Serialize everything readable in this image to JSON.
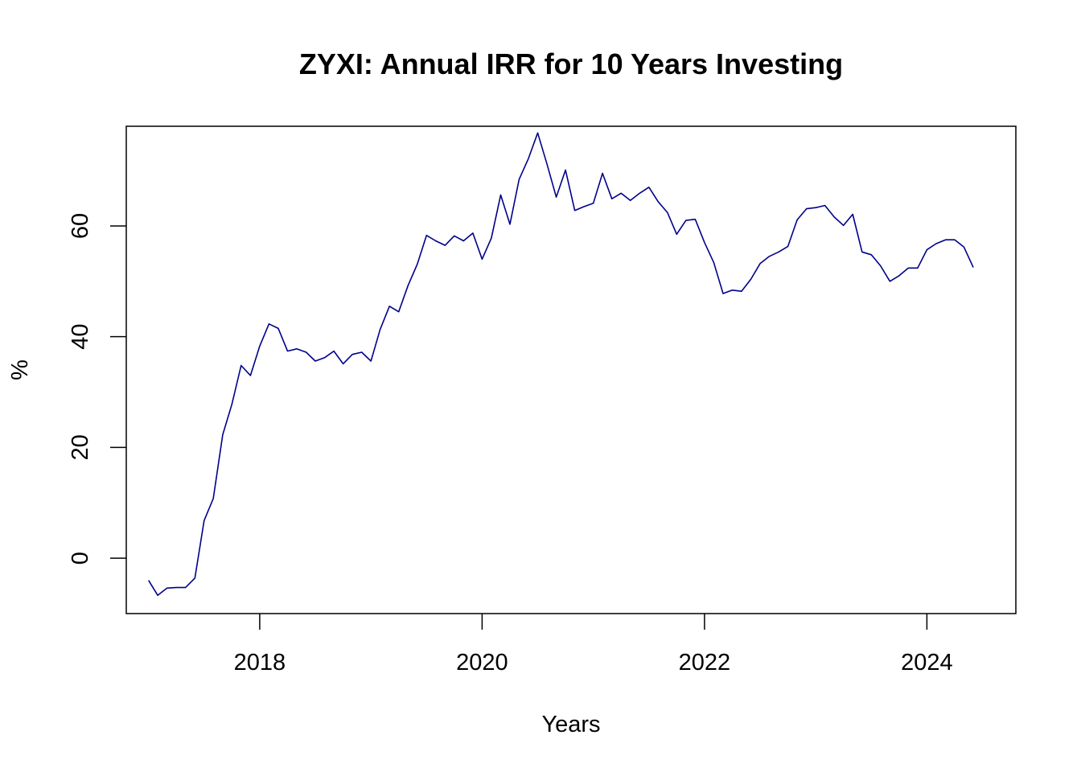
{
  "chart_data": {
    "type": "line",
    "title": "ZYXI: Annual IRR for 10 Years Investing",
    "xlabel": "Years",
    "ylabel": "%",
    "xlim": [
      2016.8,
      2024.8
    ],
    "ylim": [
      -10,
      78
    ],
    "x_ticks": [
      2018,
      2020,
      2022,
      2024
    ],
    "x_tick_labels": [
      "2018",
      "2020",
      "2022",
      "2024"
    ],
    "y_ticks": [
      0,
      20,
      40,
      60
    ],
    "y_tick_labels": [
      "0",
      "20",
      "40",
      "60"
    ],
    "grid": false,
    "legend": "none",
    "line_color": "#00008B",
    "series": [
      {
        "x": [
          2017.0,
          2017.083,
          2017.167,
          2017.25,
          2017.333,
          2017.417,
          2017.5,
          2017.583,
          2017.667,
          2017.75,
          2017.833,
          2017.917,
          2018.0,
          2018.083,
          2018.167,
          2018.25,
          2018.333,
          2018.417,
          2018.5,
          2018.583,
          2018.667,
          2018.75,
          2018.833,
          2018.917,
          2019.0,
          2019.083,
          2019.167,
          2019.25,
          2019.333,
          2019.417,
          2019.5,
          2019.583,
          2019.667,
          2019.75,
          2019.833,
          2019.917,
          2020.0,
          2020.083,
          2020.167,
          2020.25,
          2020.333,
          2020.417,
          2020.5,
          2020.583,
          2020.667,
          2020.75,
          2020.833,
          2020.917,
          2021.0,
          2021.083,
          2021.167,
          2021.25,
          2021.333,
          2021.417,
          2021.5,
          2021.583,
          2021.667,
          2021.75,
          2021.833,
          2021.917,
          2022.0,
          2022.083,
          2022.167,
          2022.25,
          2022.333,
          2022.417,
          2022.5,
          2022.583,
          2022.667,
          2022.75,
          2022.833,
          2022.917,
          2023.0,
          2023.083,
          2023.167,
          2023.25,
          2023.333,
          2023.417,
          2023.5,
          2023.583,
          2023.667,
          2023.75,
          2023.833,
          2023.917,
          2024.0,
          2024.083,
          2024.167,
          2024.25,
          2024.333,
          2024.417
        ],
        "values": [
          -4.0,
          -6.7,
          -5.4,
          -5.3,
          -5.3,
          -3.6,
          6.8,
          10.8,
          22.3,
          27.8,
          34.8,
          33.0,
          38.3,
          42.3,
          41.5,
          37.4,
          37.8,
          37.2,
          35.6,
          36.2,
          37.4,
          35.1,
          36.8,
          37.2,
          35.6,
          41.3,
          45.5,
          44.5,
          49.2,
          53.1,
          58.3,
          57.3,
          56.5,
          58.2,
          57.3,
          58.7,
          54.0,
          57.8,
          65.6,
          60.3,
          68.4,
          72.2,
          76.8,
          71.2,
          65.2,
          70.1,
          62.8,
          63.5,
          64.1,
          69.5,
          64.9,
          65.9,
          64.6,
          65.9,
          67.0,
          64.4,
          62.4,
          58.5,
          61.0,
          61.2,
          57.0,
          53.4,
          47.8,
          48.4,
          48.2,
          50.4,
          53.2,
          54.5,
          55.3,
          56.3,
          61.1,
          63.1,
          63.3,
          63.7,
          61.6,
          60.1,
          62.1,
          55.3,
          54.8,
          52.8,
          50.0,
          51.0,
          52.4,
          52.4,
          55.7,
          56.8,
          57.5,
          57.5,
          56.2,
          52.5
        ]
      }
    ]
  }
}
